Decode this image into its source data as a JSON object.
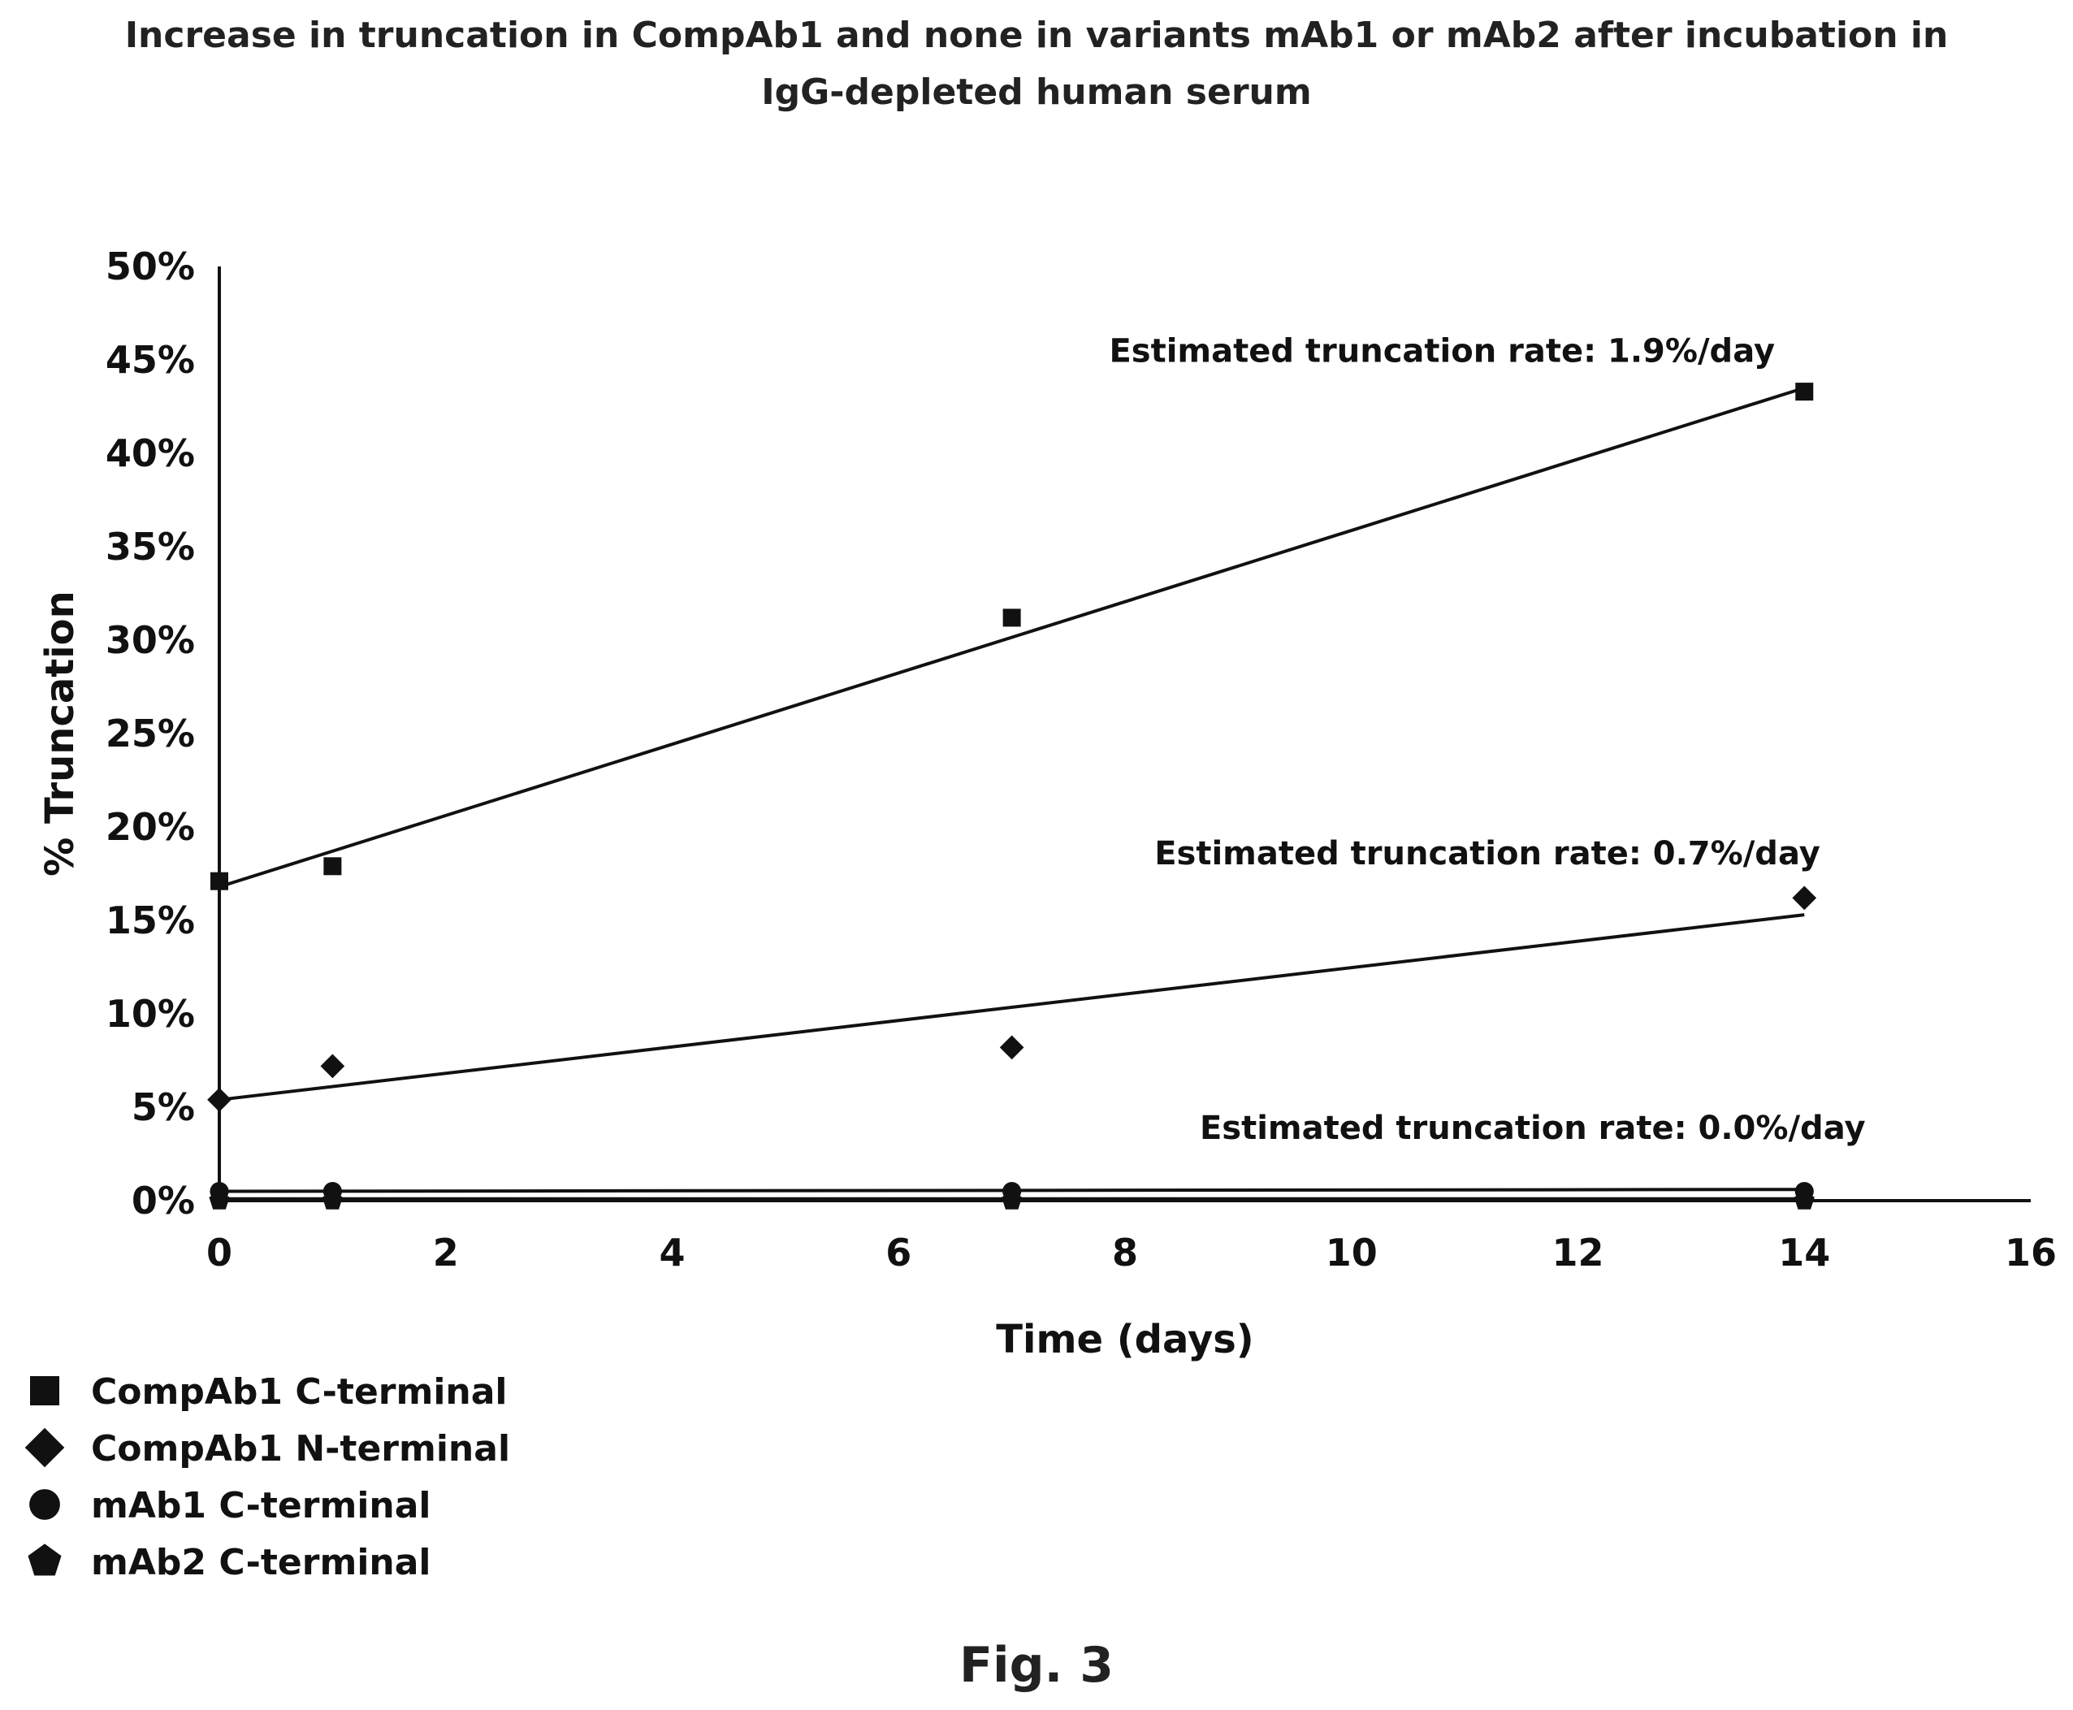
{
  "chart_data": {
    "type": "scatter",
    "title": "Increase in truncation in CompAb1 and none in variants mAb1 or mAb2 after incubation in IgG-depleted human serum",
    "title_lines": [
      "Increase in truncation in CompAb1 and none in variants mAb1 or mAb2 after incubation in",
      "IgG-depleted human serum"
    ],
    "xlabel": "Time (days)",
    "ylabel": "% Truncation",
    "xlim": [
      0,
      16
    ],
    "ylim": [
      0,
      0.5
    ],
    "x_ticks": [
      0,
      2,
      4,
      6,
      8,
      10,
      12,
      14,
      16
    ],
    "x_tick_labels": [
      "0",
      "2",
      "4",
      "6",
      "8",
      "10",
      "12",
      "14",
      "16"
    ],
    "y_ticks": [
      0,
      0.05,
      0.1,
      0.15,
      0.2,
      0.25,
      0.3,
      0.35,
      0.4,
      0.45,
      0.5
    ],
    "y_tick_labels": [
      "0%",
      "5%",
      "10%",
      "15%",
      "20%",
      "25%",
      "30%",
      "35%",
      "40%",
      "45%",
      "50%"
    ],
    "grid": false,
    "legend_position": "bottom-left",
    "series": [
      {
        "name": "CompAb1 C-terminal",
        "marker": "square",
        "x": [
          0,
          1,
          7,
          14
        ],
        "y": [
          0.171,
          0.179,
          0.312,
          0.433
        ],
        "trend": [
          0.168,
          0.435
        ]
      },
      {
        "name": "CompAb1 N-terminal",
        "marker": "diamond",
        "x": [
          0,
          1,
          7,
          14
        ],
        "y": [
          0.054,
          0.072,
          0.082,
          0.162
        ],
        "trend": [
          0.054,
          0.153
        ]
      },
      {
        "name": "mAb1 C-terminal",
        "marker": "circle",
        "x": [
          0,
          1,
          7,
          14
        ],
        "y": [
          0.005,
          0.005,
          0.005,
          0.005
        ],
        "trend": [
          0.005,
          0.006
        ]
      },
      {
        "name": "mAb2 C-terminal",
        "marker": "pentagon",
        "x": [
          0,
          1,
          7,
          14
        ],
        "y": [
          0.0,
          0.0,
          0.0,
          0.0
        ],
        "trend": [
          0.001,
          0.001
        ]
      }
    ],
    "annotations": [
      {
        "text": "Estimated truncation rate: 1.9%/day",
        "x": 10.8,
        "y": 0.449
      },
      {
        "text": "Estimated truncation rate: 0.7%/day",
        "x": 11.2,
        "y": 0.18
      },
      {
        "text": "Estimated truncation rate: 0.0%/day",
        "x": 11.6,
        "y": 0.033
      }
    ],
    "caption": "Fig. 3"
  }
}
